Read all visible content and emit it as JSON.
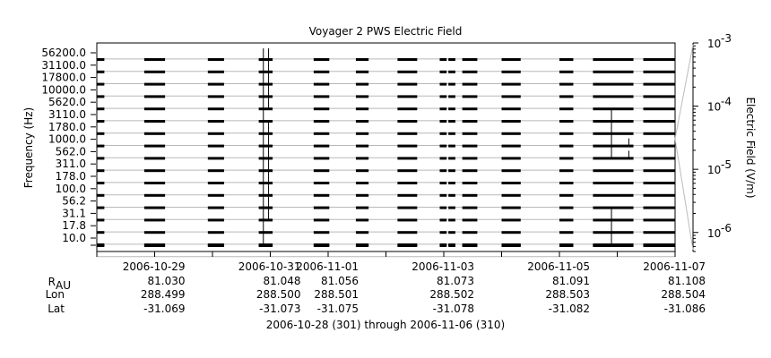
{
  "chart_data": {
    "type": "spectrogram",
    "title": "Voyager 2 PWS Electric Field",
    "ylabel": "Frequency (Hz)",
    "y2label": "Electric Field (V/m)",
    "xlabel": "2006-10-28 (301) through 2006-11-06 (310)",
    "frequency_channels": [
      "56200.0",
      "31100.0",
      "17800.0",
      "10000.0",
      "5620.0",
      "3110.0",
      "1780.0",
      "1000.0",
      "562.0",
      "311.0",
      "178.0",
      "100.0",
      "56.2",
      "31.1",
      "17.8",
      "10.0"
    ],
    "colorbar": {
      "scale": "log",
      "min": 5e-07,
      "max": 0.001,
      "ticks": [
        {
          "label_base": "10",
          "label_exp": "-3",
          "value": 0.001
        },
        {
          "label_base": "10",
          "label_exp": "-4",
          "value": 0.0001
        },
        {
          "label_base": "10",
          "label_exp": "-5",
          "value": 1e-05
        },
        {
          "label_base": "10",
          "label_exp": "-6",
          "value": 1e-06
        }
      ]
    },
    "x_start_day": 301,
    "x_end_day": 311,
    "x_ticks": [
      {
        "day": 302,
        "date": "2006-10-29",
        "r_au": "81.030",
        "lon": "288.499",
        "lat": "-31.069"
      },
      {
        "day": 304,
        "date": "2006-10-31",
        "r_au": "81.048",
        "lon": "288.500",
        "lat": "-31.073"
      },
      {
        "day": 305,
        "date": "2006-11-01",
        "r_au": "81.056",
        "lon": "288.501",
        "lat": "-31.075"
      },
      {
        "day": 307,
        "date": "2006-11-03",
        "r_au": "81.073",
        "lon": "288.502",
        "lat": "-31.078"
      },
      {
        "day": 309,
        "date": "2006-11-05",
        "r_au": "81.091",
        "lon": "288.503",
        "lat": "-31.082"
      },
      {
        "day": 311,
        "date": "2006-11-07",
        "r_au": "81.108",
        "lon": "288.504",
        "lat": "-31.086"
      }
    ],
    "row_labels": {
      "r_main": "R",
      "r_sub": "AU",
      "lon": "Lon",
      "lat": "Lat"
    },
    "data_segments_days": [
      [
        301.0,
        301.13
      ],
      [
        301.82,
        302.18
      ],
      [
        302.92,
        303.2
      ],
      [
        303.8,
        304.04
      ],
      [
        304.75,
        305.02
      ],
      [
        305.48,
        305.7
      ],
      [
        306.2,
        306.54
      ],
      [
        306.93,
        307.05
      ],
      [
        307.08,
        307.2
      ],
      [
        307.32,
        307.58
      ],
      [
        308.0,
        308.33
      ],
      [
        309.0,
        309.24
      ],
      [
        309.58,
        310.28
      ],
      [
        310.45,
        311.0
      ]
    ],
    "bursts": [
      {
        "day": 303.88,
        "channels": [
          0,
          1,
          2,
          3,
          4,
          5,
          6,
          7,
          8,
          9,
          10,
          11,
          12,
          13,
          14,
          15
        ],
        "intensity": "high"
      },
      {
        "day": 303.97,
        "channels": [
          0,
          1,
          2,
          3,
          4,
          6,
          7,
          8,
          9,
          10,
          11,
          12,
          13
        ],
        "intensity": "high"
      },
      {
        "day": 309.9,
        "channels": [
          5,
          6,
          7,
          8,
          13,
          14,
          15
        ],
        "intensity": "high"
      },
      {
        "day": 310.2,
        "channels": [
          7,
          8
        ],
        "intensity": "medium"
      }
    ]
  }
}
